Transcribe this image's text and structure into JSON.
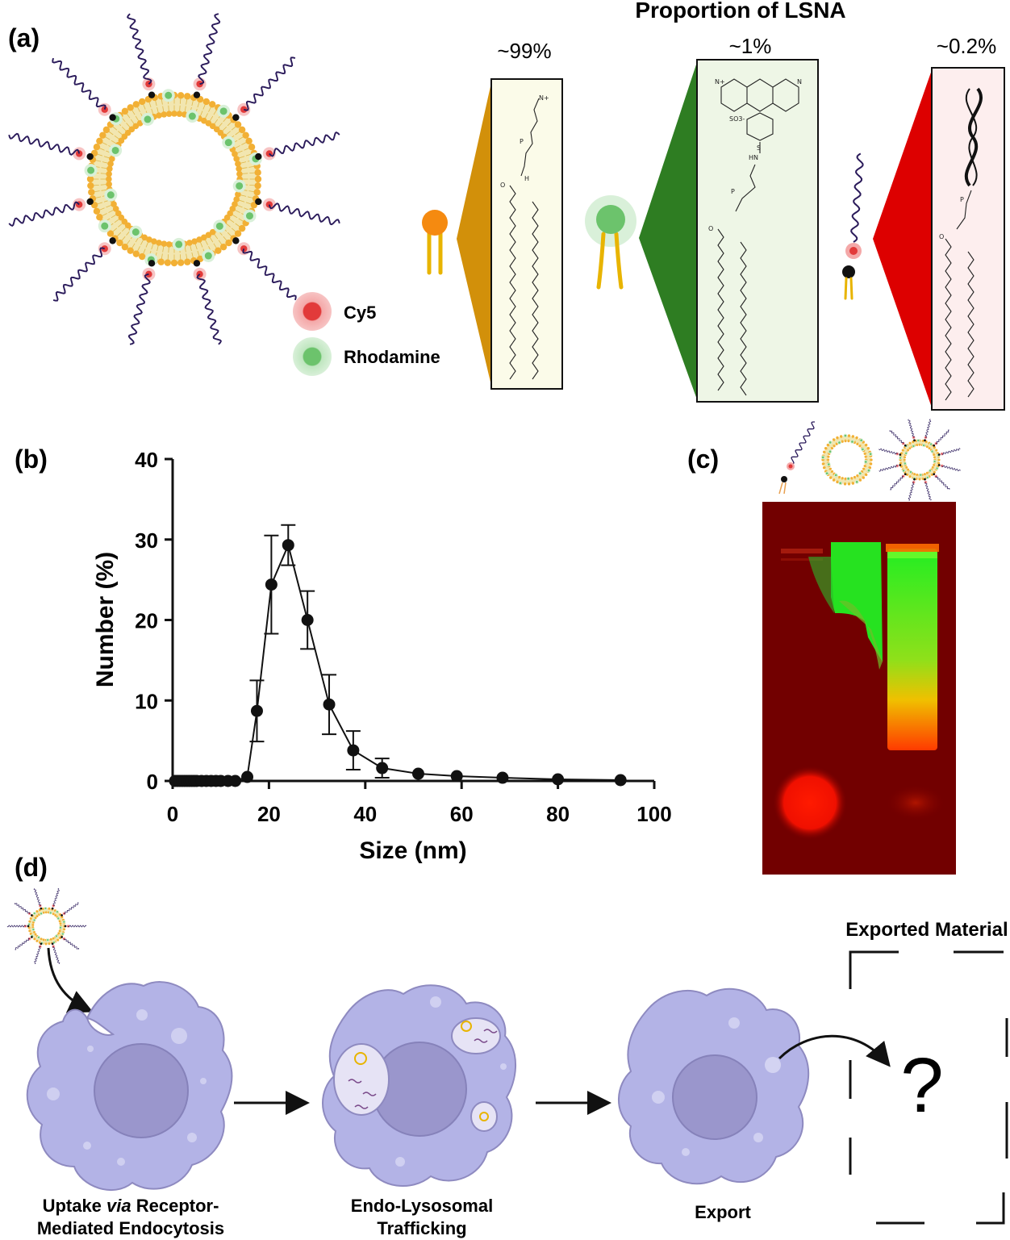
{
  "panel_labels": {
    "a": "(a)",
    "b": "(b)",
    "c": "(c)",
    "d": "(d)"
  },
  "panel_a": {
    "heading": "Proportion of LSNA",
    "legend": [
      {
        "label": "Cy5",
        "color": "#e23a3a"
      },
      {
        "label": "Rhodamine",
        "color": "#6cc36c"
      }
    ],
    "components": [
      {
        "percent": "~99%",
        "fan_color": "#d2900a",
        "box_fill": "#fbfbe9"
      },
      {
        "percent": "~1%",
        "fan_color": "#2e7d22",
        "box_fill": "#eef6e6"
      },
      {
        "percent": "~0.2%",
        "fan_color": "#dd0000",
        "box_fill": "#fdeeee"
      }
    ],
    "structure_labels": {
      "pc_headgroup": "N+",
      "rhod_amine": "N+",
      "rhod_amine2": "N",
      "sulfonate": "SO3-",
      "sulfonyl": "S",
      "hn": "HN",
      "oxo": "O",
      "phos": "P",
      "o_minus": "O-",
      "h": "H"
    }
  },
  "chart_data": {
    "type": "scatter",
    "xlabel": "Size (nm)",
    "ylabel": "Number (%)",
    "xlim": [
      0,
      100
    ],
    "ylim": [
      0,
      40
    ],
    "xticks": [
      0,
      20,
      40,
      60,
      80,
      100
    ],
    "yticks": [
      0,
      10,
      20,
      30,
      40
    ],
    "grid": false,
    "series": [
      {
        "x": [
          0.5,
          1,
          1.5,
          2,
          2.5,
          3,
          3.5,
          4,
          4.5,
          5,
          6,
          7,
          8,
          9,
          10,
          11.5,
          13,
          15.5,
          17.5,
          20.5,
          24,
          28,
          32.5,
          37.5,
          43.5,
          51,
          59,
          68.5,
          80,
          93
        ],
        "y": [
          0,
          0,
          0,
          0,
          0,
          0,
          0,
          0,
          0,
          0,
          0,
          0,
          0,
          0,
          0,
          0,
          0,
          0.5,
          8.7,
          24.4,
          29.3,
          20,
          9.5,
          3.8,
          1.6,
          0.9,
          0.6,
          0.4,
          0.2,
          0.1
        ],
        "error": [
          0,
          0,
          0,
          0,
          0,
          0,
          0,
          0,
          0,
          0,
          0,
          0,
          0,
          0,
          0,
          0,
          0,
          0,
          3.8,
          6.1,
          2.5,
          3.6,
          3.7,
          2.4,
          1.2,
          0,
          0,
          0,
          0,
          0
        ]
      }
    ]
  },
  "panel_c": {
    "lane_icons": [
      "lsna-strand",
      "liposome",
      "lsna"
    ],
    "gel_background": "#7a0000",
    "green_band": "#22ee22",
    "red_band": "#ff1a00"
  },
  "panel_d": {
    "steps": [
      {
        "line1_pre": "Uptake ",
        "line1_em": "via",
        "line1_post": " Receptor-",
        "line2": "Mediated Endocytosis"
      },
      {
        "line1_pre": "Endo-Lysosomal",
        "line1_em": "",
        "line1_post": "",
        "line2": "Trafficking"
      },
      {
        "line1_pre": "Export",
        "line1_em": "",
        "line1_post": "",
        "line2": ""
      }
    ],
    "exported_title": "Exported Material",
    "unknown_symbol": "?",
    "cell_color": "#b3b3e6",
    "nucleus_color": "#9a96cc"
  }
}
